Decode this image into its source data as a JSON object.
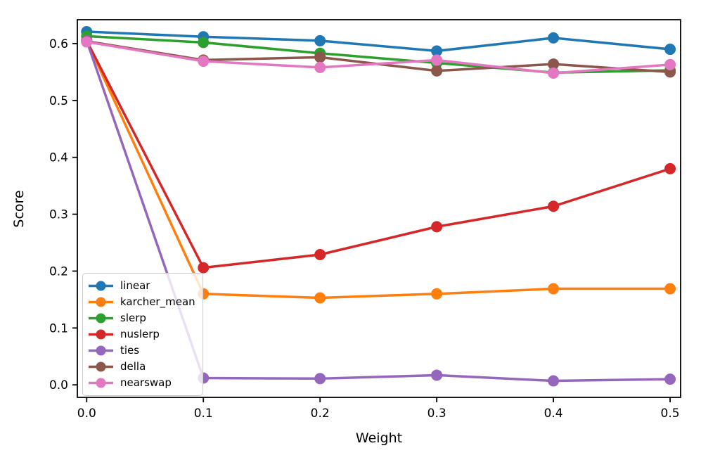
{
  "chart_data": {
    "type": "line",
    "title": "",
    "xlabel": "Weight",
    "ylabel": "Score",
    "x": [
      0.0,
      0.1,
      0.2,
      0.3,
      0.4,
      0.5
    ],
    "xtick_labels": [
      "0.0",
      "0.1",
      "0.2",
      "0.3",
      "0.4",
      "0.5"
    ],
    "ytick_values": [
      0.0,
      0.1,
      0.2,
      0.3,
      0.4,
      0.5,
      0.6
    ],
    "ytick_labels": [
      "0.0",
      "0.1",
      "0.2",
      "0.3",
      "0.4",
      "0.5",
      "0.6"
    ],
    "xlim": [
      -0.008,
      0.509
    ],
    "ylim": [
      -0.022,
      0.642
    ],
    "grid": false,
    "legend_position": "lower-left",
    "marker": "circle",
    "series": [
      {
        "name": "linear",
        "color": "#1f77b4",
        "values": [
          0.621,
          0.612,
          0.605,
          0.587,
          0.61,
          0.59
        ]
      },
      {
        "name": "karcher_mean",
        "color": "#ff7f0e",
        "values": [
          0.605,
          0.16,
          0.153,
          0.16,
          0.169,
          0.169
        ]
      },
      {
        "name": "slerp",
        "color": "#2ca02c",
        "values": [
          0.613,
          0.602,
          0.583,
          0.566,
          0.549,
          0.553
        ]
      },
      {
        "name": "nuslerp",
        "color": "#d62728",
        "values": [
          0.605,
          0.206,
          0.229,
          0.278,
          0.314,
          0.38
        ]
      },
      {
        "name": "ties",
        "color": "#9467bd",
        "values": [
          0.605,
          0.012,
          0.011,
          0.017,
          0.007,
          0.01
        ]
      },
      {
        "name": "della",
        "color": "#8c564b",
        "values": [
          0.604,
          0.571,
          0.576,
          0.552,
          0.564,
          0.55
        ]
      },
      {
        "name": "nearswap",
        "color": "#e377c2",
        "values": [
          0.603,
          0.569,
          0.558,
          0.571,
          0.548,
          0.563
        ]
      }
    ],
    "spine_color": "#000000",
    "background_color": "#ffffff"
  }
}
